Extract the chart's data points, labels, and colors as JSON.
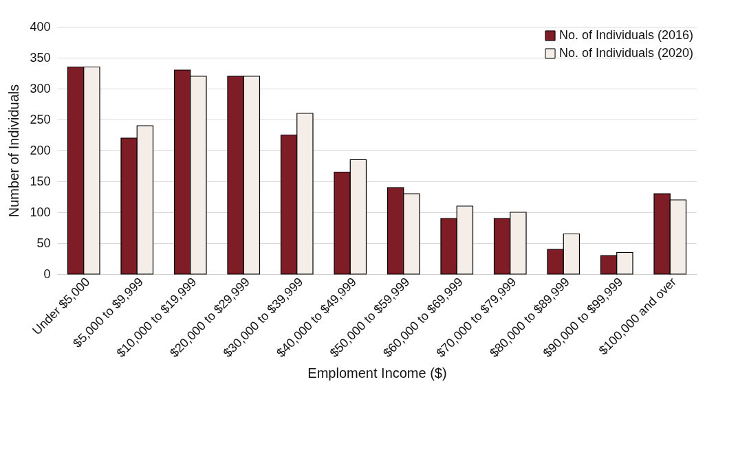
{
  "chart_data": {
    "type": "bar",
    "xlabel": "Emploment Income ($)",
    "ylabel": "Number of Individuals",
    "categories": [
      "Under $5,000",
      "$5,000 to $9,999",
      "$10,000 to $19,999",
      "$20,000 to $29,999",
      "$30,000 to $39,999",
      "$40,000 to $49,999",
      "$50,000 to $59,999",
      "$60,000 to $69,999",
      "$70,000 to $79,999",
      "$80,000 to $89,999",
      "$90,000 to $99,999",
      "$100,000 and over"
    ],
    "series": [
      {
        "name": "No. of Individuals (2016)",
        "color": "#7f1d27",
        "values": [
          335,
          220,
          330,
          320,
          225,
          165,
          140,
          90,
          90,
          40,
          30,
          130
        ]
      },
      {
        "name": "No. of Individuals (2020)",
        "color": "#f5ede8",
        "values": [
          335,
          240,
          320,
          320,
          260,
          185,
          130,
          110,
          100,
          65,
          35,
          120
        ]
      }
    ],
    "ylim": [
      0,
      400
    ],
    "yticks": [
      0,
      50,
      100,
      150,
      200,
      250,
      300,
      350,
      400
    ],
    "grid": "y",
    "legend": "top right"
  }
}
